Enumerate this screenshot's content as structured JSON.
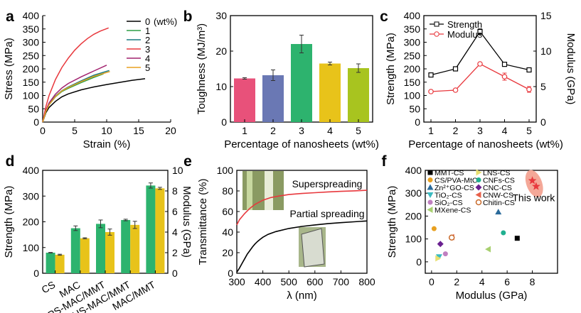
{
  "chart_data": [
    {
      "panel": "a",
      "type": "line",
      "xlabel": "Strain (%)",
      "ylabel": "Stress (MPa)",
      "xlim": [
        0,
        20
      ],
      "ylim": [
        0,
        400
      ],
      "xticks": [
        0,
        5,
        10,
        15,
        20
      ],
      "yticks": [
        0,
        50,
        100,
        150,
        200,
        250,
        300,
        350,
        400
      ],
      "legend_title": "(wt%)",
      "series": [
        {
          "name": "0",
          "color": "#000000",
          "x": [
            0,
            0.5,
            1,
            2,
            3,
            4,
            6,
            8,
            10,
            12,
            14,
            16
          ],
          "y": [
            0,
            35,
            55,
            78,
            95,
            106,
            121,
            132,
            141,
            149,
            157,
            163
          ]
        },
        {
          "name": "1",
          "color": "#2e9e45",
          "x": [
            0,
            0.5,
            1,
            2,
            3,
            4,
            6,
            8,
            9.5
          ],
          "y": [
            0,
            40,
            65,
            95,
            115,
            127,
            148,
            168,
            181
          ]
        },
        {
          "name": "2",
          "color": "#1a7a80",
          "x": [
            0,
            0.5,
            1,
            2,
            3,
            4,
            6,
            8,
            10.4
          ],
          "y": [
            0,
            42,
            68,
            98,
            118,
            132,
            155,
            176,
            194
          ]
        },
        {
          "name": "3",
          "color": "#e8383d",
          "x": [
            0,
            0.5,
            1,
            2,
            3,
            4,
            5,
            6,
            7,
            8,
            9,
            10.3
          ],
          "y": [
            0,
            58,
            100,
            160,
            205,
            240,
            270,
            294,
            314,
            330,
            342,
            354
          ]
        },
        {
          "name": "4",
          "color": "#a2236f",
          "x": [
            0,
            0.5,
            1,
            2,
            3,
            4,
            6,
            8,
            10
          ],
          "y": [
            0,
            44,
            72,
            105,
            128,
            145,
            170,
            192,
            214
          ]
        },
        {
          "name": "5",
          "color": "#e8a020",
          "x": [
            0,
            0.5,
            1,
            2,
            3,
            4,
            6,
            8,
            10.5
          ],
          "y": [
            0,
            40,
            65,
            96,
            117,
            130,
            152,
            172,
            190
          ]
        }
      ]
    },
    {
      "panel": "b",
      "type": "bar",
      "xlabel": "Percentage of nanosheets (wt%)",
      "ylabel": "Toughness (MJ/m³)",
      "ylim": [
        0,
        30
      ],
      "yticks": [
        0,
        10,
        20,
        30
      ],
      "categories": [
        "1",
        "2",
        "3",
        "4",
        "5"
      ],
      "values": [
        12.3,
        13.2,
        22.0,
        16.5,
        15.2
      ],
      "errors": [
        0.2,
        1.5,
        2.5,
        0.4,
        1.2
      ],
      "colors": [
        "#e8517a",
        "#6a78b4",
        "#2db36e",
        "#e8c31a",
        "#a8c41f"
      ]
    },
    {
      "panel": "c",
      "type": "line",
      "xlabel": "Percentage of nanosheets (wt%)",
      "ylabel": "Strength (MPa)",
      "ylabel_right": "Modulus (GPa)",
      "xticks": [
        1,
        2,
        3,
        4,
        5
      ],
      "ylim": [
        0,
        400
      ],
      "yticks": [
        0,
        50,
        100,
        150,
        200,
        250,
        300,
        350,
        400
      ],
      "ylim_right": [
        0,
        15
      ],
      "yticks_right": [
        0,
        5,
        10,
        15
      ],
      "series": [
        {
          "name": "Strength",
          "axis": "left",
          "color": "#000000",
          "x": [
            1,
            2,
            3,
            4,
            5
          ],
          "values": [
            177,
            200,
            340,
            217,
            196
          ],
          "errors": [
            4,
            8,
            10,
            4,
            3
          ]
        },
        {
          "name": "Modulus",
          "axis": "right",
          "color": "#e8383d",
          "x": [
            1,
            2,
            3,
            4,
            5
          ],
          "values": [
            4.3,
            4.5,
            8.2,
            6.4,
            4.6
          ],
          "errors": [
            0.1,
            0.15,
            0.1,
            0.5,
            0.4
          ]
        }
      ]
    },
    {
      "panel": "d",
      "type": "bar",
      "ylabel": "Strength (MPa)",
      "ylabel_right": "Modulus (GPa)",
      "ylim": [
        0,
        400
      ],
      "yticks": [
        0,
        100,
        200,
        300,
        400
      ],
      "ylim_right": [
        0,
        10
      ],
      "yticks_right": [
        0,
        2,
        4,
        6,
        8,
        10
      ],
      "categories": [
        "CS",
        "MAC",
        "PS-MAC/MMT",
        "US-MAC/MMT",
        "MAC/MMT"
      ],
      "series": [
        {
          "name": "Strength",
          "axis": "left",
          "color": "#2db36e",
          "values": [
            80,
            175,
            192,
            207,
            341
          ],
          "errors": [
            1,
            9,
            15,
            3,
            10
          ]
        },
        {
          "name": "Modulus",
          "axis": "right",
          "color": "#e8c31a",
          "values": [
            1.8,
            3.4,
            4.0,
            4.7,
            8.25
          ],
          "errors": [
            0.05,
            0.05,
            0.3,
            0.35,
            0.1
          ]
        }
      ]
    },
    {
      "panel": "e",
      "type": "line",
      "xlabel": "λ (nm)",
      "ylabel": "Transmittance (%)",
      "xlim": [
        300,
        800
      ],
      "ylim": [
        0,
        100
      ],
      "xticks": [
        300,
        400,
        500,
        600,
        700,
        800
      ],
      "yticks": [
        0,
        20,
        40,
        60,
        80,
        100
      ],
      "series": [
        {
          "name": "Superspreading",
          "color": "#e8383d",
          "x": [
            300,
            310,
            330,
            350,
            370,
            400,
            430,
            460,
            500,
            550,
            600,
            650,
            700,
            750,
            800
          ],
          "y": [
            47,
            52,
            58,
            63,
            67,
            71,
            73.5,
            75,
            76.5,
            77.5,
            78.3,
            79,
            79.6,
            80.1,
            80.6
          ]
        },
        {
          "name": "Partial spreading",
          "color": "#000000",
          "x": [
            300,
            310,
            320,
            330,
            340,
            350,
            360,
            370,
            380,
            390,
            400,
            420,
            450,
            500,
            550,
            600,
            650,
            700,
            750,
            800
          ],
          "y": [
            1,
            5,
            9.5,
            14,
            18.5,
            22,
            25.5,
            28.5,
            31,
            33,
            35,
            37.8,
            40.5,
            43.5,
            45.5,
            47,
            48.2,
            49.2,
            50,
            50.8
          ]
        }
      ]
    },
    {
      "panel": "f",
      "type": "scatter",
      "xlabel": "Modulus (GPa)",
      "ylabel": "Strength (MPa)",
      "xlim": [
        -0.5,
        10
      ],
      "ylim": [
        -50,
        400
      ],
      "xticks": [
        0,
        2,
        4,
        6,
        8
      ],
      "yticks": [
        0,
        100,
        200,
        300,
        400
      ],
      "annotation": "This work",
      "series": [
        {
          "name": "MMT-CS",
          "color": "#000000",
          "marker": "square",
          "points": [
            [
              6.8,
              103
            ]
          ]
        },
        {
          "name": "CS/PVA-MtC",
          "color": "#e8a020",
          "marker": "circle",
          "points": [
            [
              0.2,
              145
            ]
          ]
        },
        {
          "name": "Zn²⁺GO-CS",
          "color": "#2a6a9a",
          "marker": "triangle",
          "points": [
            [
              5.3,
              218
            ]
          ]
        },
        {
          "name": "TiO₂-CS",
          "color": "#3bbac0",
          "marker": "triangle-down",
          "points": [
            [
              0.6,
              22
            ]
          ]
        },
        {
          "name": "SiO₂-CS",
          "color": "#c080c0",
          "marker": "circle",
          "points": [
            [
              1.1,
              35
            ]
          ]
        },
        {
          "name": "MXene-CS",
          "color": "#a8d070",
          "marker": "triangle-left",
          "points": [
            [
              4.5,
              55
            ]
          ]
        },
        {
          "name": "LNS-CS",
          "color": "#e8e070",
          "marker": "triangle-right",
          "points": [
            [
              0.5,
              15
            ]
          ]
        },
        {
          "name": "CNFs-CS",
          "color": "#20b090",
          "marker": "circle",
          "points": [
            [
              5.7,
              127
            ]
          ]
        },
        {
          "name": "CNC-CS",
          "color": "#6a2090",
          "marker": "diamond",
          "points": [
            [
              0.7,
              78
            ]
          ]
        },
        {
          "name": "CNW-CS",
          "color": "#e8604a",
          "marker": "triangle-left",
          "points": [
            [
              1.6,
              108
            ]
          ]
        },
        {
          "name": "Chitin-CS",
          "color": "#c86a2a",
          "marker": "circle-half",
          "points": [
            [
              1.6,
              106
            ]
          ]
        },
        {
          "name": "This work",
          "color": "#e8383d",
          "marker": "star",
          "points": [
            [
              8.0,
              355
            ],
            [
              8.3,
              330
            ]
          ]
        }
      ]
    }
  ],
  "panel_letters": [
    "a",
    "b",
    "c",
    "d",
    "e",
    "f"
  ],
  "legend_c": [
    "Strength",
    "Modulus"
  ],
  "colors": {
    "red": "#e8383d",
    "green": "#2db36e",
    "yellow": "#e8c31a",
    "black": "#000000"
  }
}
